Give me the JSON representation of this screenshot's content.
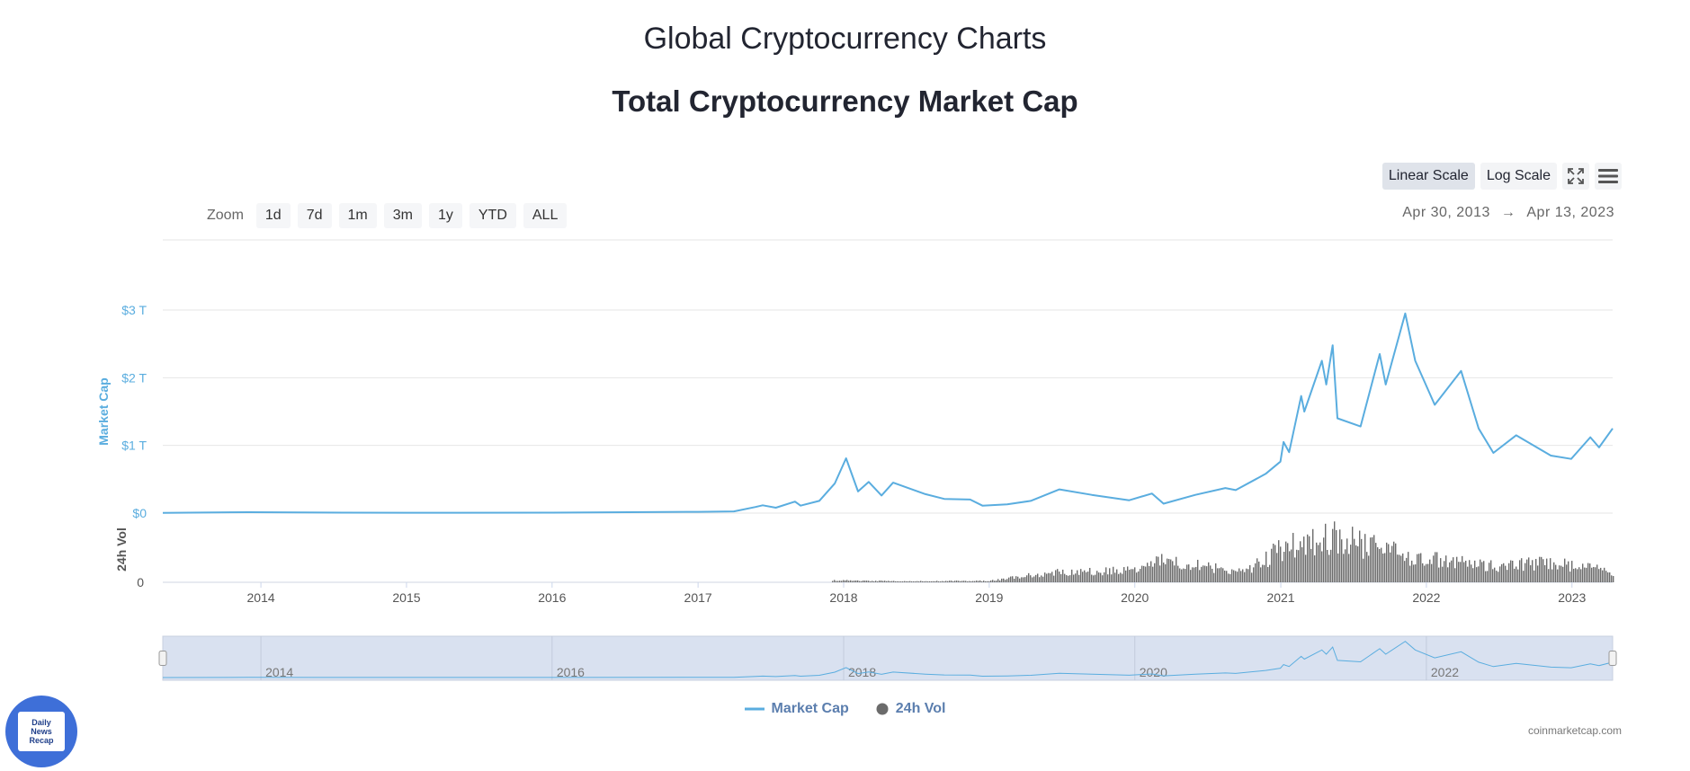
{
  "page": {
    "title": "Global Cryptocurrency Charts",
    "chart_title": "Total Cryptocurrency Market Cap"
  },
  "controls": {
    "scale_buttons": [
      "Linear Scale",
      "Log Scale"
    ],
    "active_scale": "Linear Scale",
    "zoom_label": "Zoom",
    "zoom_buttons": [
      "1d",
      "7d",
      "1m",
      "3m",
      "1y",
      "YTD",
      "ALL"
    ],
    "date_from": "Apr 30, 2013",
    "date_arrow": "→",
    "date_to": "Apr 13, 2023",
    "icons": [
      "fullscreen-icon",
      "menu-icon"
    ]
  },
  "legend": {
    "market_cap": "Market Cap",
    "volume": "24h Vol"
  },
  "credits": "coinmarketcap.com",
  "logo": {
    "line1": "Daily",
    "line2": "News",
    "line3": "Recap"
  },
  "colors": {
    "market_cap": "#5aaddf",
    "volume": "#6b6b6b",
    "navigator_fill": "#d9e1f0"
  },
  "chart_data": {
    "type": "line",
    "title": "Total Cryptocurrency Market Cap",
    "x_range": [
      "2013-04-30",
      "2023-04-13"
    ],
    "x_ticks": [
      "2014",
      "2015",
      "2016",
      "2017",
      "2018",
      "2019",
      "2020",
      "2021",
      "2022",
      "2023"
    ],
    "y_axis": {
      "label": "Market Cap",
      "ticks": [
        "$0",
        "$1 T",
        "$2 T",
        "$3 T"
      ],
      "range": [
        0,
        3
      ]
    },
    "volume_axis": {
      "label": "24h Vol",
      "ticks": [
        "0"
      ]
    },
    "navigator_ticks": [
      "2014",
      "2016",
      "2018",
      "2020",
      "2022"
    ],
    "series": [
      {
        "name": "Market Cap",
        "unit": "trillion USD",
        "points": [
          [
            "2013-04-30",
            0.002
          ],
          [
            "2013-12-01",
            0.013
          ],
          [
            "2014-06-01",
            0.008
          ],
          [
            "2015-01-01",
            0.005
          ],
          [
            "2016-01-01",
            0.007
          ],
          [
            "2016-12-31",
            0.018
          ],
          [
            "2017-04-01",
            0.025
          ],
          [
            "2017-05-25",
            0.09
          ],
          [
            "2017-06-12",
            0.115
          ],
          [
            "2017-07-15",
            0.08
          ],
          [
            "2017-09-01",
            0.17
          ],
          [
            "2017-09-15",
            0.11
          ],
          [
            "2017-11-01",
            0.18
          ],
          [
            "2017-12-10",
            0.44
          ],
          [
            "2018-01-07",
            0.81
          ],
          [
            "2018-02-06",
            0.32
          ],
          [
            "2018-03-05",
            0.46
          ],
          [
            "2018-04-06",
            0.26
          ],
          [
            "2018-05-05",
            0.45
          ],
          [
            "2018-07-25",
            0.28
          ],
          [
            "2018-09-10",
            0.21
          ],
          [
            "2018-11-14",
            0.2
          ],
          [
            "2018-12-15",
            0.11
          ],
          [
            "2019-02-15",
            0.13
          ],
          [
            "2019-04-15",
            0.18
          ],
          [
            "2019-06-26",
            0.35
          ],
          [
            "2019-09-15",
            0.27
          ],
          [
            "2019-12-18",
            0.19
          ],
          [
            "2020-02-13",
            0.29
          ],
          [
            "2020-03-13",
            0.14
          ],
          [
            "2020-06-01",
            0.27
          ],
          [
            "2020-08-15",
            0.37
          ],
          [
            "2020-09-10",
            0.34
          ],
          [
            "2020-11-24",
            0.58
          ],
          [
            "2020-12-31",
            0.76
          ],
          [
            "2021-01-08",
            1.05
          ],
          [
            "2021-01-22",
            0.9
          ],
          [
            "2021-02-21",
            1.73
          ],
          [
            "2021-03-01",
            1.5
          ],
          [
            "2021-04-14",
            2.25
          ],
          [
            "2021-04-25",
            1.9
          ],
          [
            "2021-05-11",
            2.48
          ],
          [
            "2021-05-23",
            1.4
          ],
          [
            "2021-07-20",
            1.28
          ],
          [
            "2021-09-06",
            2.35
          ],
          [
            "2021-09-21",
            1.9
          ],
          [
            "2021-11-09",
            2.95
          ],
          [
            "2021-12-04",
            2.25
          ],
          [
            "2022-01-22",
            1.6
          ],
          [
            "2022-03-29",
            2.1
          ],
          [
            "2022-05-12",
            1.25
          ],
          [
            "2022-06-18",
            0.89
          ],
          [
            "2022-08-14",
            1.15
          ],
          [
            "2022-11-09",
            0.85
          ],
          [
            "2022-12-30",
            0.8
          ],
          [
            "2023-02-16",
            1.12
          ],
          [
            "2023-03-10",
            0.97
          ],
          [
            "2023-04-13",
            1.25
          ]
        ]
      },
      {
        "name": "24h Vol",
        "type": "bar",
        "unit": "relative",
        "points": [
          [
            "2017-12-01",
            0.04
          ],
          [
            "2018-06-01",
            0.02
          ],
          [
            "2019-01-01",
            0.03
          ],
          [
            "2019-06-01",
            0.2
          ],
          [
            "2020-01-01",
            0.25
          ],
          [
            "2020-03-13",
            0.45
          ],
          [
            "2020-10-01",
            0.2
          ],
          [
            "2021-01-10",
            0.75
          ],
          [
            "2021-05-19",
            0.95
          ],
          [
            "2021-11-10",
            0.55
          ],
          [
            "2022-06-13",
            0.35
          ],
          [
            "2022-11-09",
            0.4
          ],
          [
            "2023-03-13",
            0.3
          ],
          [
            "2023-04-13",
            0.12
          ]
        ]
      }
    ],
    "grid": true,
    "legend_position": "bottom-center"
  }
}
